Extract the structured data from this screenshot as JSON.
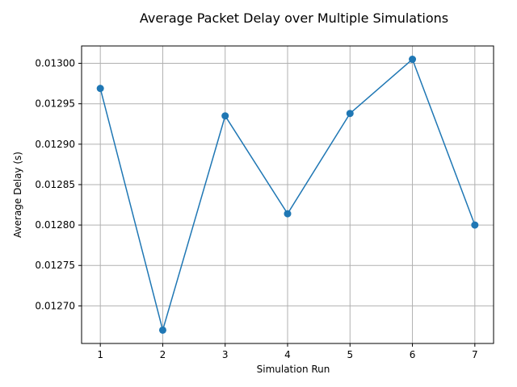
{
  "chart_data": {
    "type": "line",
    "title": "Average Packet Delay over Multiple Simulations",
    "xlabel": "Simulation Run",
    "ylabel": "Average Delay (s)",
    "x": [
      1,
      2,
      3,
      4,
      5,
      6,
      7
    ],
    "series": [
      {
        "values": [
          0.012969,
          0.01267,
          0.012935,
          0.012814,
          0.012938,
          0.013005,
          0.0128
        ]
      }
    ],
    "xlim": [
      0.7,
      7.3
    ],
    "ylim": [
      0.0126535,
      0.0130215
    ],
    "xticks": [
      "1",
      "2",
      "3",
      "4",
      "5",
      "6",
      "7"
    ],
    "yticks": [
      "0.01270",
      "0.01275",
      "0.01280",
      "0.01285",
      "0.01290",
      "0.01295",
      "0.01300"
    ],
    "grid": true,
    "line_color": "#1f77b4",
    "marker": "circle"
  }
}
